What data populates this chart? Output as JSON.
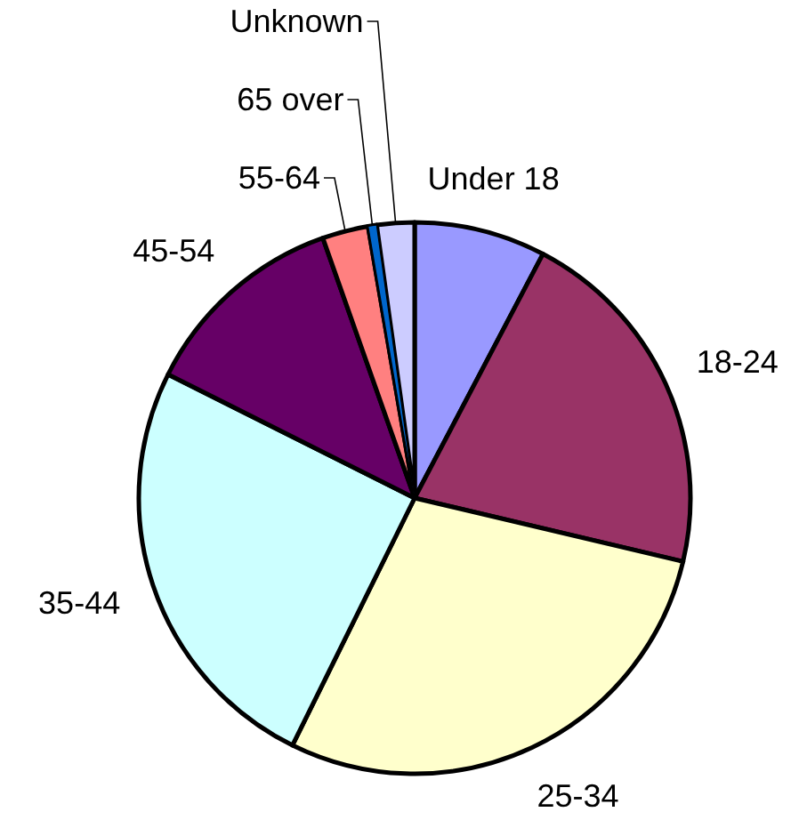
{
  "chart_data": {
    "type": "pie",
    "categories": [
      "Under 18",
      "18-24",
      "25-34",
      "35-44",
      "45-54",
      "55-64",
      "65 over",
      "Unknown"
    ],
    "values": [
      7.7,
      21.0,
      28.6,
      25.1,
      12.2,
      2.7,
      0.5,
      2.2
    ],
    "colors": [
      "#9999ff",
      "#993366",
      "#ffffcc",
      "#ccffff",
      "#660066",
      "#ff8080",
      "#0066cc",
      "#ccccff"
    ],
    "legend": false
  }
}
